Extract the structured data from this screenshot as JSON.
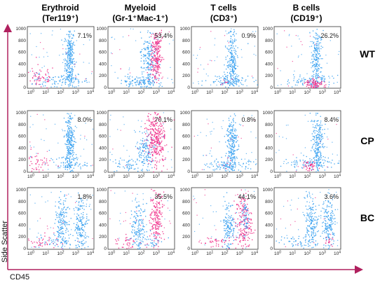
{
  "chart_data": {
    "type": "scatter",
    "description_kind": "flow cytometry dot plot grid",
    "x_label": "CD45",
    "y_label": "Side Scatter",
    "x_scale": "log",
    "x_ticks": [
      "10^0",
      "10^1",
      "10^2",
      "10^3",
      "10^4"
    ],
    "y_range": [
      0,
      1000
    ],
    "y_ticks": [
      "0",
      "200",
      "400",
      "600",
      "800",
      "1000"
    ],
    "columns": [
      {
        "line1": "Erythroid",
        "line2": "(Ter119⁺)"
      },
      {
        "line1": "Myeloid",
        "line2": "(Gr-1⁺Mac-1⁺)"
      },
      {
        "line1": "T cells",
        "line2": "(CD3⁺)"
      },
      {
        "line1": "B cells",
        "line2": "(CD19⁺)"
      }
    ],
    "rows": [
      "WT",
      "CP",
      "BC"
    ],
    "percentages": [
      [
        "7.1%",
        "53.4%",
        "0.9%",
        "26.2%"
      ],
      [
        "8.0%",
        "70.1%",
        "0.8%",
        "8.4%"
      ],
      [
        "1.8%",
        "35.5%",
        "44.1%",
        "3.6%"
      ]
    ],
    "colors": {
      "population": "#3ea3f0",
      "gated": "#f0308a",
      "axis_arrow": "#b0205e"
    }
  }
}
